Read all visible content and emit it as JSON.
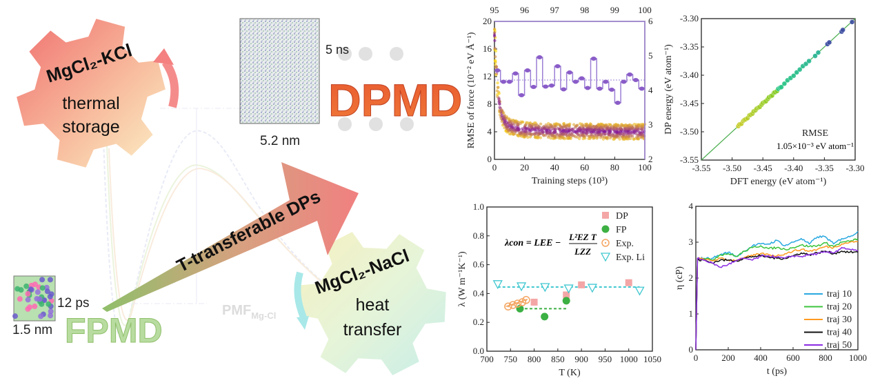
{
  "diagram": {
    "gear_top": {
      "line1": "MgCl₂-KCl",
      "line2": "thermal",
      "line3": "storage"
    },
    "gear_bottom": {
      "line1": "MgCl₂-NaCl",
      "line2": "heat",
      "line3": "transfer"
    },
    "arrow_label": "T-transferable DPs",
    "dpmd": {
      "time": "5 ns",
      "size": "5.2 nm",
      "label": "DPMD"
    },
    "fpmd": {
      "time": "12 ps",
      "size": "1.5 nm",
      "label": "FPMD"
    },
    "pmf_label": "PMF",
    "pmf_sub": "Mg-Cl",
    "colors": {
      "dpmd": "#e8502a",
      "fpmd": "#a8d08d",
      "arrow_start": "#8fbf6a",
      "arrow_end": "#f08080"
    }
  },
  "chart_data": [
    {
      "type": "scatter",
      "xlabel": "Training steps (10³)",
      "ylabel": "RMSE of force (10⁻² eV Å⁻¹)",
      "xlim": [
        0,
        100
      ],
      "ylim": [
        0,
        20
      ],
      "xticks": [
        0,
        20,
        40,
        60,
        80,
        100
      ],
      "yticks": [
        0,
        4,
        8,
        12,
        16,
        20
      ],
      "top_xlim": [
        95,
        100
      ],
      "top_xticks": [
        95,
        96,
        97,
        98,
        99,
        100
      ],
      "right_ylim": [
        2,
        6
      ],
      "right_yticks": [
        2,
        3,
        4,
        5,
        6
      ],
      "force_rmse": {
        "x": [
          0,
          1,
          2,
          4,
          6,
          8,
          10,
          15,
          20,
          30,
          40,
          60,
          80,
          100
        ],
        "y": [
          18,
          14,
          10,
          7,
          5.8,
          5.2,
          4.8,
          4.5,
          4.3,
          4.2,
          4.1,
          4.1,
          4.0,
          4.0
        ]
      },
      "dp_energy_step": {
        "x": [
          95.1,
          95.3,
          95.5,
          95.7,
          95.9,
          96.1,
          96.3,
          96.5,
          96.7,
          96.9,
          97.1,
          97.3,
          97.5,
          97.7,
          97.9,
          98.1,
          98.3,
          98.5,
          98.7,
          98.9,
          99.1,
          99.3,
          99.5,
          99.7,
          99.9
        ],
        "y": [
          4.58,
          4.25,
          4.25,
          4.49,
          3.86,
          4.58,
          4.1,
          4.96,
          4.11,
          4.14,
          4.7,
          4.03,
          4.52,
          4.25,
          4.35,
          4.07,
          4.92,
          4.05,
          4.25,
          4.02,
          3.64,
          4.25,
          4.46,
          4.3,
          4.05
        ],
        "mean": 4.3
      },
      "colors": {
        "step": "#9b7fd4",
        "scatter_low": "#6a0dad",
        "scatter_high": "#ffe600"
      }
    },
    {
      "type": "scatter",
      "xlabel": "DFT energy (eV atom⁻¹)",
      "ylabel": "DP energy (eV atom⁻¹)",
      "xlim": [
        -3.55,
        -3.3
      ],
      "ylim": [
        -3.55,
        -3.3
      ],
      "xticks": [
        -3.55,
        -3.5,
        -3.45,
        -3.4,
        -3.35,
        -3.3
      ],
      "yticks": [
        -3.55,
        -3.5,
        -3.45,
        -3.4,
        -3.35,
        -3.3
      ],
      "annotation": {
        "line1": "RMSE",
        "line2": "1.05×10⁻³ eV atom⁻¹"
      },
      "x": [
        -3.49,
        -3.488,
        -3.485,
        -3.482,
        -3.48,
        -3.478,
        -3.475,
        -3.472,
        -3.47,
        -3.467,
        -3.465,
        -3.462,
        -3.46,
        -3.457,
        -3.455,
        -3.452,
        -3.45,
        -3.447,
        -3.445,
        -3.442,
        -3.44,
        -3.437,
        -3.435,
        -3.432,
        -3.43,
        -3.427,
        -3.425,
        -3.422,
        -3.42,
        -3.415,
        -3.41,
        -3.405,
        -3.4,
        -3.395,
        -3.39,
        -3.385,
        -3.38,
        -3.375,
        -3.365,
        -3.36,
        -3.345,
        -3.342,
        -3.322,
        -3.32,
        -3.305
      ],
      "y": [
        -3.49,
        -3.487,
        -3.486,
        -3.481,
        -3.479,
        -3.478,
        -3.476,
        -3.471,
        -3.47,
        -3.468,
        -3.464,
        -3.462,
        -3.459,
        -3.457,
        -3.456,
        -3.452,
        -3.449,
        -3.447,
        -3.446,
        -3.442,
        -3.439,
        -3.437,
        -3.436,
        -3.431,
        -3.43,
        -3.428,
        -3.424,
        -3.422,
        -3.421,
        -3.415,
        -3.409,
        -3.405,
        -3.401,
        -3.395,
        -3.39,
        -3.384,
        -3.38,
        -3.375,
        -3.366,
        -3.36,
        -3.345,
        -3.342,
        -3.323,
        -3.32,
        -3.306
      ],
      "colors": {
        "line": "#4caf50"
      }
    },
    {
      "type": "scatter",
      "xlabel": "T (K)",
      "ylabel": "λ (W m⁻¹K⁻¹)",
      "xlim": [
        700,
        1050
      ],
      "ylim": [
        0,
        1.0
      ],
      "xticks": [
        700,
        750,
        800,
        850,
        900,
        950,
        1000,
        1050
      ],
      "yticks": [
        0.0,
        0.2,
        0.4,
        0.6,
        0.8,
        1.0
      ],
      "formula": {
        "lhs": "λcon = LEE −",
        "num": "L²EZ T",
        "den": "LZZ"
      },
      "legend_position": "top-right",
      "series": [
        {
          "name": "DP",
          "marker": "square",
          "color": "#f4a6a6",
          "x": [
            800,
            868,
            900,
            1000
          ],
          "y": [
            0.34,
            0.39,
            0.46,
            0.475
          ]
        },
        {
          "name": "FP",
          "marker": "circle",
          "color": "#3cb043",
          "x": [
            770,
            822,
            868
          ],
          "y": [
            0.295,
            0.24,
            0.35
          ],
          "mean": 0.295,
          "mean_range": [
            770,
            870
          ]
        },
        {
          "name": "Exp.",
          "marker": "open-circle",
          "color": "#f4a460",
          "x": [
            745,
            755,
            765,
            775,
            783
          ],
          "y": [
            0.31,
            0.32,
            0.33,
            0.34,
            0.355
          ]
        },
        {
          "name": "Exp.  Li",
          "marker": "open-triangle-down",
          "color": "#40c8d0",
          "x": [
            723,
            773,
            823,
            873,
            923,
            1023
          ],
          "y": [
            0.465,
            0.45,
            0.445,
            0.435,
            0.44,
            0.42
          ],
          "mean": 0.445,
          "mean_range": [
            723,
            1023
          ]
        }
      ]
    },
    {
      "type": "line",
      "xlabel": "t (ps)",
      "ylabel": "η (cP)",
      "xlim": [
        0,
        1000
      ],
      "ylim": [
        0,
        4
      ],
      "xticks": [
        0,
        200,
        400,
        600,
        800,
        1000
      ],
      "yticks": [
        0,
        1,
        2,
        3,
        4
      ],
      "legend_position": "bottom-right",
      "x": [
        0,
        10,
        50,
        100,
        150,
        200,
        250,
        300,
        350,
        400,
        450,
        500,
        550,
        600,
        650,
        700,
        750,
        800,
        850,
        900,
        950,
        1000
      ],
      "series": [
        {
          "name": "traj 10",
          "color": "#29a8e0",
          "values": [
            0,
            2.55,
            2.55,
            2.55,
            2.65,
            2.72,
            2.6,
            2.75,
            2.9,
            2.95,
            2.95,
            3.05,
            2.9,
            3.0,
            3.1,
            2.95,
            3.15,
            3.15,
            2.95,
            3.1,
            3.15,
            3.3
          ]
        },
        {
          "name": "traj 20",
          "color": "#3cc43c",
          "values": [
            0,
            2.55,
            2.55,
            2.5,
            2.65,
            2.68,
            2.6,
            2.75,
            2.85,
            2.9,
            2.82,
            2.85,
            2.8,
            2.85,
            2.92,
            2.88,
            2.9,
            2.98,
            2.88,
            3.0,
            3.02,
            3.1
          ]
        },
        {
          "name": "traj 30",
          "color": "#ff9a1f",
          "values": [
            0,
            2.55,
            2.52,
            2.48,
            2.55,
            2.5,
            2.5,
            2.58,
            2.62,
            2.68,
            2.65,
            2.62,
            2.68,
            2.75,
            2.8,
            2.75,
            2.8,
            2.88,
            2.85,
            2.95,
            3.0,
            3.02
          ]
        },
        {
          "name": "traj 40",
          "color": "#111111",
          "values": [
            0,
            2.5,
            2.5,
            2.42,
            2.5,
            2.5,
            2.48,
            2.55,
            2.6,
            2.62,
            2.58,
            2.55,
            2.55,
            2.62,
            2.7,
            2.65,
            2.7,
            2.75,
            2.68,
            2.75,
            2.72,
            2.72
          ]
        },
        {
          "name": "traj 50",
          "color": "#8a2be2",
          "values": [
            0,
            2.55,
            2.5,
            2.42,
            2.3,
            2.38,
            2.48,
            2.55,
            2.5,
            2.6,
            2.62,
            2.58,
            2.55,
            2.62,
            2.6,
            2.65,
            2.68,
            2.72,
            2.7,
            2.85,
            2.8,
            2.75
          ]
        }
      ]
    }
  ]
}
